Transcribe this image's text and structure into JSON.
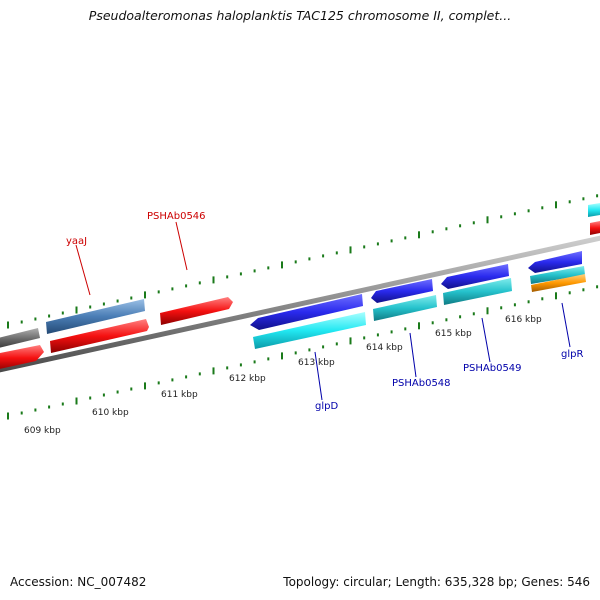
{
  "title": "Pseudoalteromonas haloplanktis TAC125 chromosome II, complet...",
  "footer": {
    "accession": "Accession: NC_007482",
    "summary": "Topology: circular; Length: 635,328 bp; Genes: 546"
  },
  "scale_ticks": [
    "609 kbp",
    "610 kbp",
    "611 kbp",
    "612 kbp",
    "613 kbp",
    "614 kbp",
    "615 kbp",
    "616 kbp"
  ],
  "gene_labels": {
    "yaaJ": "yaaJ",
    "PSHAb0546": "PSHAb0546",
    "glpD": "glpD",
    "PSHAb0548": "PSHAb0548",
    "PSHAb0549": "PSHAb0549",
    "glpR": "glpR"
  },
  "colors": {
    "forward_cds": "#2b2bf0",
    "forward_rna": "#00d8e8",
    "reverse_cds": "#ff1a1a",
    "reverse_rna": "#4a7db5",
    "other": "#707070",
    "backbone": "#8a8a8a",
    "ticks": "#1a7a1a",
    "label_reverse": "#cc0000",
    "label_forward": "#0000aa",
    "accent_orange": "#ff9900"
  }
}
